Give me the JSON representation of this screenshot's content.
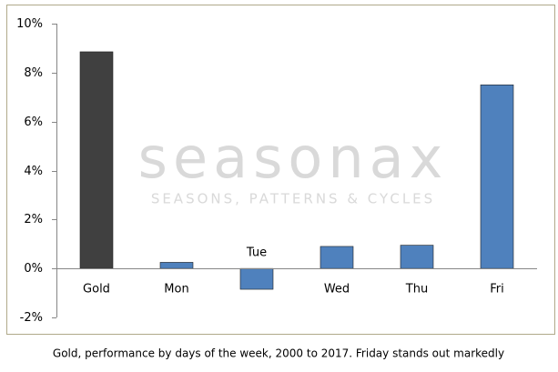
{
  "chart_data": {
    "type": "bar",
    "categories": [
      "Gold",
      "Mon",
      "Tue",
      "Wed",
      "Thu",
      "Fri"
    ],
    "values": [
      8.85,
      0.25,
      -0.85,
      0.9,
      0.95,
      7.5
    ],
    "colors": [
      "#404040",
      "#4f81bd",
      "#4f81bd",
      "#4f81bd",
      "#4f81bd",
      "#4f81bd"
    ],
    "ylim": [
      -2,
      10
    ],
    "yticks": [
      {
        "value": -2,
        "label": "-2%"
      },
      {
        "value": 0,
        "label": "0%"
      },
      {
        "value": 2,
        "label": "2%"
      },
      {
        "value": 4,
        "label": "4%"
      },
      {
        "value": 6,
        "label": "6%"
      },
      {
        "value": 8,
        "label": "8%"
      },
      {
        "value": 10,
        "label": "10%"
      }
    ],
    "grid": false,
    "watermark": "seasonax",
    "watermark_tagline": "SEASONS, PATTERNS & CYCLES",
    "caption": "Gold, performance by days of the week, 2000 to 2017.  Friday stands out markedly"
  }
}
